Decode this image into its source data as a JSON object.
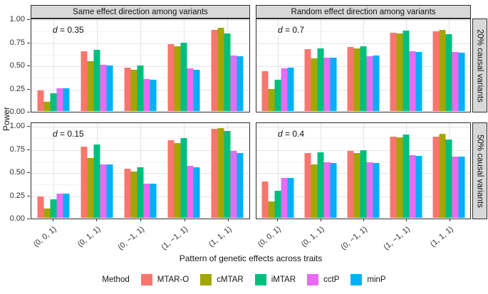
{
  "figure": {
    "ylabel": "Power",
    "xlabel": "Pattern of genetic effects across traits",
    "legend_title": "Method"
  },
  "chart_data": {
    "type": "bar",
    "title": "",
    "xlabel": "Pattern of genetic effects across traits",
    "ylabel": "Power",
    "ylim": [
      0,
      1
    ],
    "grid": "on",
    "legend_position": "bottom",
    "y_ticks": [
      "0.00",
      "0.25",
      "0.50",
      "0.75",
      "1.00"
    ],
    "categories": [
      "(0, 0, 1)",
      "(0, 1, 1)",
      "(0, −1, 1)",
      "(1, −1, 1)",
      "(1, 1, 1)"
    ],
    "col_facets": [
      "Same effect direction among variants",
      "Random effect direction among variants"
    ],
    "row_facets": [
      "20% causal variants",
      "50% causal variants"
    ],
    "legend_order": [
      "MTAR-O",
      "cMTAR",
      "iMTAR",
      "cctP",
      "minP"
    ],
    "series_colors": {
      "MTAR-O": "#F8766D",
      "cMTAR": "#A3A500",
      "iMTAR": "#00BF7D",
      "cctP": "#E76BF3",
      "minP": "#00B0F6"
    },
    "panels": [
      {
        "col": "Same effect direction among variants",
        "row": "20% causal variants",
        "annotation": "d = 0.35",
        "series": [
          {
            "name": "MTAR-O",
            "values": [
              0.22,
              0.65,
              0.47,
              0.72,
              0.88
            ]
          },
          {
            "name": "cMTAR",
            "values": [
              0.1,
              0.54,
              0.45,
              0.7,
              0.9
            ]
          },
          {
            "name": "iMTAR",
            "values": [
              0.19,
              0.66,
              0.49,
              0.74,
              0.84
            ]
          },
          {
            "name": "cctP",
            "values": [
              0.25,
              0.5,
              0.35,
              0.46,
              0.6
            ]
          },
          {
            "name": "minP",
            "values": [
              0.25,
              0.49,
              0.34,
              0.45,
              0.59
            ]
          }
        ]
      },
      {
        "col": "Random effect direction among variants",
        "row": "20% causal variants",
        "annotation": "d = 0.7",
        "series": [
          {
            "name": "MTAR-O",
            "values": [
              0.43,
              0.67,
              0.69,
              0.85,
              0.86
            ]
          },
          {
            "name": "cMTAR",
            "values": [
              0.24,
              0.57,
              0.68,
              0.84,
              0.88
            ]
          },
          {
            "name": "iMTAR",
            "values": [
              0.34,
              0.68,
              0.7,
              0.87,
              0.83
            ]
          },
          {
            "name": "cctP",
            "values": [
              0.46,
              0.58,
              0.59,
              0.65,
              0.64
            ]
          },
          {
            "name": "minP",
            "values": [
              0.47,
              0.58,
              0.6,
              0.64,
              0.63
            ]
          }
        ]
      },
      {
        "col": "Same effect direction among variants",
        "row": "50% causal variants",
        "annotation": "d = 0.15",
        "series": [
          {
            "name": "MTAR-O",
            "values": [
              0.23,
              0.77,
              0.53,
              0.84,
              0.96
            ]
          },
          {
            "name": "cMTAR",
            "values": [
              0.1,
              0.65,
              0.5,
              0.81,
              0.97
            ]
          },
          {
            "name": "iMTAR",
            "values": [
              0.2,
              0.79,
              0.55,
              0.86,
              0.94
            ]
          },
          {
            "name": "cctP",
            "values": [
              0.26,
              0.58,
              0.37,
              0.56,
              0.72
            ]
          },
          {
            "name": "minP",
            "values": [
              0.26,
              0.58,
              0.37,
              0.55,
              0.7
            ]
          }
        ]
      },
      {
        "col": "Random effect direction among variants",
        "row": "50% causal variants",
        "annotation": "d = 0.4",
        "series": [
          {
            "name": "MTAR-O",
            "values": [
              0.39,
              0.7,
              0.72,
              0.88,
              0.88
            ]
          },
          {
            "name": "cMTAR",
            "values": [
              0.18,
              0.58,
              0.7,
              0.87,
              0.91
            ]
          },
          {
            "name": "iMTAR",
            "values": [
              0.29,
              0.71,
              0.73,
              0.9,
              0.85
            ]
          },
          {
            "name": "cctP",
            "values": [
              0.43,
              0.6,
              0.6,
              0.68,
              0.66
            ]
          },
          {
            "name": "minP",
            "values": [
              0.43,
              0.59,
              0.59,
              0.67,
              0.66
            ]
          }
        ]
      }
    ]
  }
}
